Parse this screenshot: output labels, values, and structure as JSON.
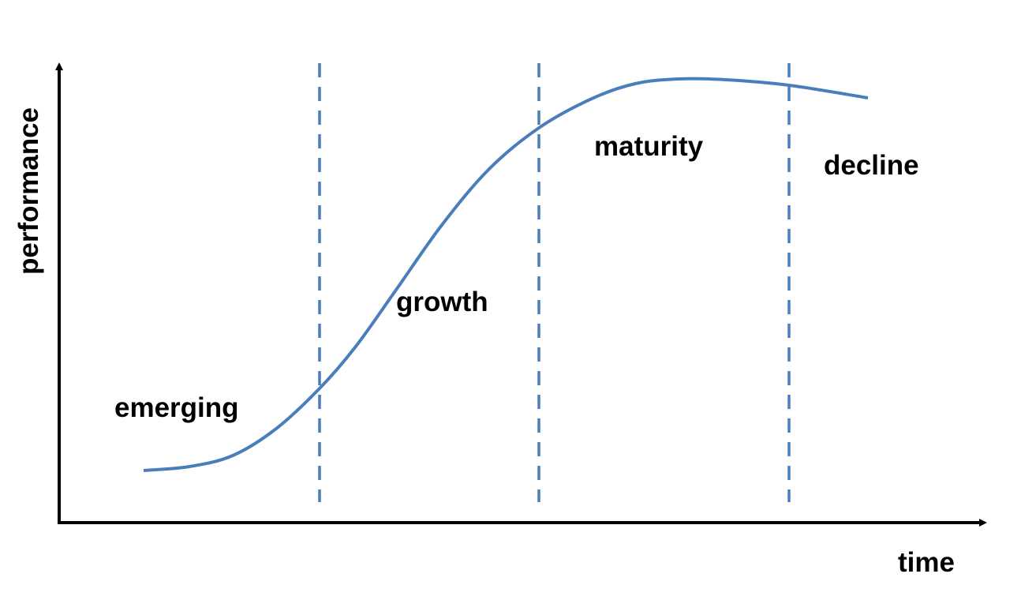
{
  "diagram": {
    "y_axis_label": "performance",
    "x_axis_label": "time",
    "phases": [
      {
        "label": "emerging"
      },
      {
        "label": "growth"
      },
      {
        "label": "maturity"
      },
      {
        "label": "decline"
      }
    ],
    "colors": {
      "curve": "#4a7ebb",
      "divider": "#4a7ebb",
      "axis": "#000000",
      "text": "#000000"
    }
  }
}
